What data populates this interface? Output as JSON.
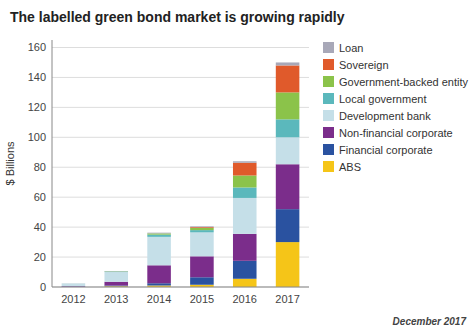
{
  "chart_data": {
    "type": "bar",
    "stacked": true,
    "title": "The labelled green bond market is growing rapidly",
    "ylabel": "$ Billions",
    "categories": [
      "2012",
      "2013",
      "2014",
      "2015",
      "2016",
      "2017"
    ],
    "series": [
      {
        "name": "ABS",
        "color": "#f5c518",
        "values": [
          0.0,
          0.5,
          1.0,
          1.5,
          5.5,
          30.0
        ]
      },
      {
        "name": "Financial corporate",
        "color": "#2a52a0",
        "values": [
          0.3,
          0.5,
          1.5,
          5.0,
          12.0,
          22.0
        ]
      },
      {
        "name": "Non-financial corporate",
        "color": "#7b2d8b",
        "values": [
          0.3,
          2.5,
          12.0,
          14.0,
          18.0,
          30.0
        ]
      },
      {
        "name": "Development bank",
        "color": "#c5dfe8",
        "values": [
          1.5,
          6.5,
          19.0,
          16.0,
          24.0,
          18.0
        ]
      },
      {
        "name": "Local government",
        "color": "#5bb8bc",
        "values": [
          0.1,
          0.3,
          1.5,
          1.5,
          7.0,
          12.0
        ]
      },
      {
        "name": "Government-backed entity",
        "color": "#8bc34a",
        "values": [
          0.0,
          0.2,
          0.8,
          1.5,
          8.0,
          18.0
        ]
      },
      {
        "name": "Sovereign",
        "color": "#e05a2b",
        "values": [
          0.0,
          0.0,
          0.0,
          0.5,
          8.5,
          18.0
        ]
      },
      {
        "name": "Loan",
        "color": "#a8a8b8",
        "values": [
          0.1,
          0.2,
          0.5,
          0.5,
          1.0,
          2.0
        ]
      }
    ],
    "ylim": [
      0,
      165
    ],
    "yticks": [
      0,
      20,
      40,
      60,
      80,
      100,
      120,
      140,
      160
    ],
    "grid": true,
    "legend": "right",
    "annotations": [
      "December 2017"
    ]
  }
}
